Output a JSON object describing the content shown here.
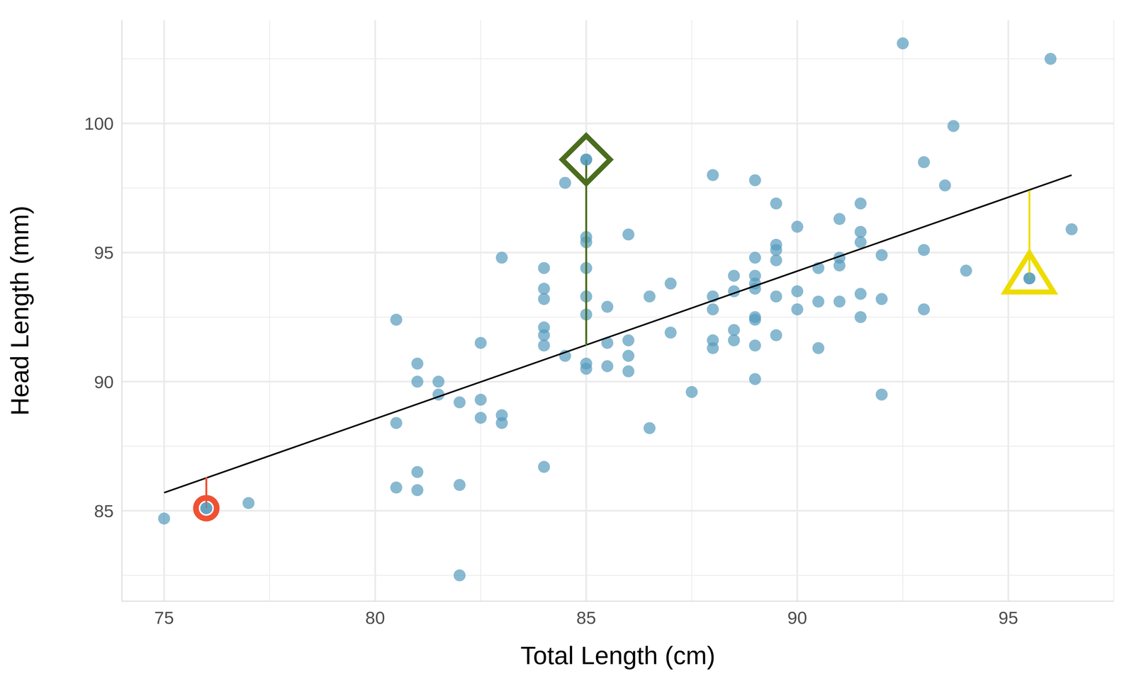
{
  "chart_data": {
    "type": "scatter",
    "x_label": "Total Length (cm)",
    "y_label": "Head Length (mm)",
    "xlim": [
      74,
      97.5
    ],
    "ylim": [
      81.5,
      104
    ],
    "xticks": [
      75,
      80,
      85,
      90,
      95
    ],
    "yticks": [
      85,
      90,
      95,
      100
    ],
    "grid": true,
    "series": [
      {
        "type": "scatter",
        "color": "#569BBD",
        "marker": "circle",
        "x": [
          75,
          76,
          77,
          80.5,
          80.5,
          80.5,
          81,
          81,
          81,
          81,
          81.5,
          81.5,
          82,
          82,
          82,
          82.5,
          82.5,
          82.5,
          83,
          83,
          83,
          84,
          84,
          84,
          84,
          84,
          84,
          84,
          84.5,
          84.5,
          85,
          85,
          85,
          85,
          85,
          85,
          85,
          85,
          85.5,
          85.5,
          85.5,
          86,
          86,
          86,
          86,
          86.5,
          86.5,
          87,
          87,
          87.5,
          88,
          88,
          88,
          88,
          88,
          88.5,
          88.5,
          88.5,
          88.5,
          89,
          89,
          89,
          89,
          89,
          89,
          89,
          89,
          89,
          89.5,
          89.5,
          89.5,
          89.5,
          89.5,
          89.5,
          90,
          90,
          90,
          90.5,
          90.5,
          90.5,
          91,
          91,
          91,
          91,
          91.5,
          91.5,
          91.5,
          91.5,
          91.5,
          92,
          92,
          92,
          92.5,
          93,
          93,
          93,
          93.5,
          93.7,
          94,
          95.5,
          96,
          96.5
        ],
        "values": [
          84.7,
          85.1,
          85.3,
          92.4,
          88.4,
          85.9,
          90.7,
          90.0,
          86.5,
          85.8,
          90.0,
          89.5,
          89.2,
          86.0,
          82.5,
          91.5,
          89.3,
          88.6,
          94.8,
          88.7,
          88.4,
          94.4,
          93.6,
          93.2,
          92.1,
          91.8,
          91.4,
          86.7,
          97.7,
          91.0,
          98.6,
          95.6,
          95.4,
          94.4,
          93.3,
          92.6,
          90.7,
          90.5,
          92.9,
          91.5,
          90.6,
          95.7,
          91.6,
          91.0,
          90.4,
          93.3,
          88.2,
          93.8,
          91.9,
          89.6,
          98.0,
          93.3,
          92.8,
          91.6,
          91.3,
          94.1,
          93.5,
          92.0,
          91.6,
          97.8,
          94.8,
          94.1,
          93.8,
          93.6,
          92.5,
          92.4,
          91.4,
          90.1,
          96.9,
          95.3,
          95.1,
          94.7,
          93.3,
          91.8,
          96.0,
          93.5,
          92.8,
          94.4,
          93.1,
          91.3,
          96.3,
          94.8,
          94.5,
          93.1,
          96.9,
          95.8,
          95.4,
          93.4,
          92.5,
          94.9,
          93.2,
          89.5,
          103.1,
          98.5,
          95.1,
          92.8,
          97.6,
          99.9,
          94.3,
          94.0,
          102.5,
          95.9
        ]
      },
      {
        "type": "line",
        "color": "#000000",
        "line_style": "solid",
        "x": [
          75,
          96.5
        ],
        "values": [
          85.7,
          98.0
        ]
      },
      {
        "type": "scatter",
        "color": "#F05133",
        "marker": "circle",
        "x": [
          76
        ],
        "values": [
          85.1
        ],
        "fitted": [
          86.3
        ]
      },
      {
        "type": "scatter",
        "color": "#4A6D1E",
        "marker": "diamond",
        "x": [
          85
        ],
        "values": [
          98.6
        ],
        "fitted": [
          91.4
        ]
      },
      {
        "type": "scatter",
        "color": "#EEDC00",
        "marker": "triangle",
        "x": [
          95.5
        ],
        "values": [
          94.0
        ],
        "fitted": [
          97.4
        ]
      }
    ]
  }
}
